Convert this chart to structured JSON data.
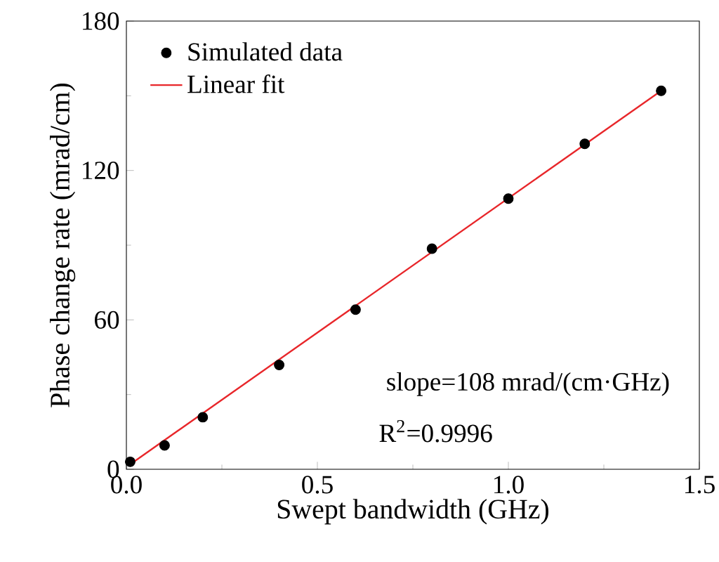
{
  "chart_data": {
    "type": "scatter",
    "xlabel": "Swept bandwidth (GHz)",
    "ylabel": "Phase change rate (mrad/cm)",
    "xlim": [
      0,
      1.5
    ],
    "ylim": [
      0,
      180
    ],
    "xticks": [
      {
        "value": 0,
        "label": "0.0"
      },
      0.5,
      {
        "value": 1,
        "label": "1.0"
      },
      1.5
    ],
    "yticks": [
      0,
      60,
      120,
      180
    ],
    "series": [
      {
        "name": "Simulated data",
        "type": "scatter",
        "color": "#000000",
        "marker": "circle",
        "x": [
          0.01,
          0.1,
          0.2,
          0.4,
          0.6,
          0.8,
          1.0,
          1.2,
          1.4
        ],
        "values": [
          3,
          9.6,
          20.9,
          41.9,
          64.1,
          88.6,
          108.7,
          130.7,
          152.0
        ]
      },
      {
        "name": "Linear fit",
        "type": "line",
        "color": "#e8262a",
        "line_style": "solid",
        "marker": "none",
        "x": [
          0.01,
          1.4
        ],
        "values": [
          2,
          152
        ]
      }
    ],
    "legend": "top left",
    "grid": false,
    "annotations": [
      "slope=108 mrad/(cm·GHz)",
      "R$^{2}$=0.9996"
    ]
  }
}
